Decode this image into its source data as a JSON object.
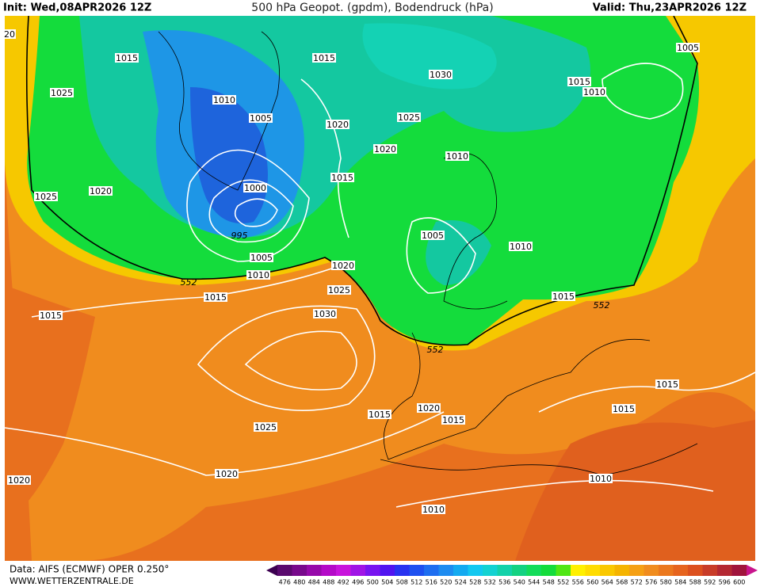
{
  "header": {
    "init": "Init: Wed,08APR2026 12Z",
    "title": "500 hPa Geopot. (gpdm), Bodendruck (hPa)",
    "valid": "Valid: Thu,23APR2026 12Z"
  },
  "footer": {
    "source": "Data: AIFS (ECMWF) OPER 0.250°",
    "url": "WWW.WETTERZENTRALE.DE"
  },
  "isobar_labels": [
    "20",
    "1015",
    "1025",
    "1010",
    "1005",
    "1025",
    "1020",
    "1000",
    "995",
    "1005",
    "1010",
    "552",
    "1015",
    "1015",
    "1020",
    "1025",
    "1030",
    "1015",
    "1030",
    "1020",
    "1025",
    "1020",
    "1010",
    "1015",
    "1005",
    "1010",
    "1015",
    "552",
    "552",
    "1005",
    "1015",
    "1010",
    "1025",
    "1015",
    "1020",
    "1015",
    "1015",
    "1015",
    "1020",
    "1020",
    "1010",
    "1010"
  ],
  "colorbar": {
    "ticks": [
      476,
      480,
      484,
      488,
      492,
      496,
      500,
      504,
      508,
      512,
      516,
      520,
      524,
      528,
      532,
      536,
      540,
      544,
      548,
      552,
      556,
      560,
      564,
      568,
      572,
      576,
      580,
      584,
      588,
      592,
      596,
      600
    ]
  }
}
